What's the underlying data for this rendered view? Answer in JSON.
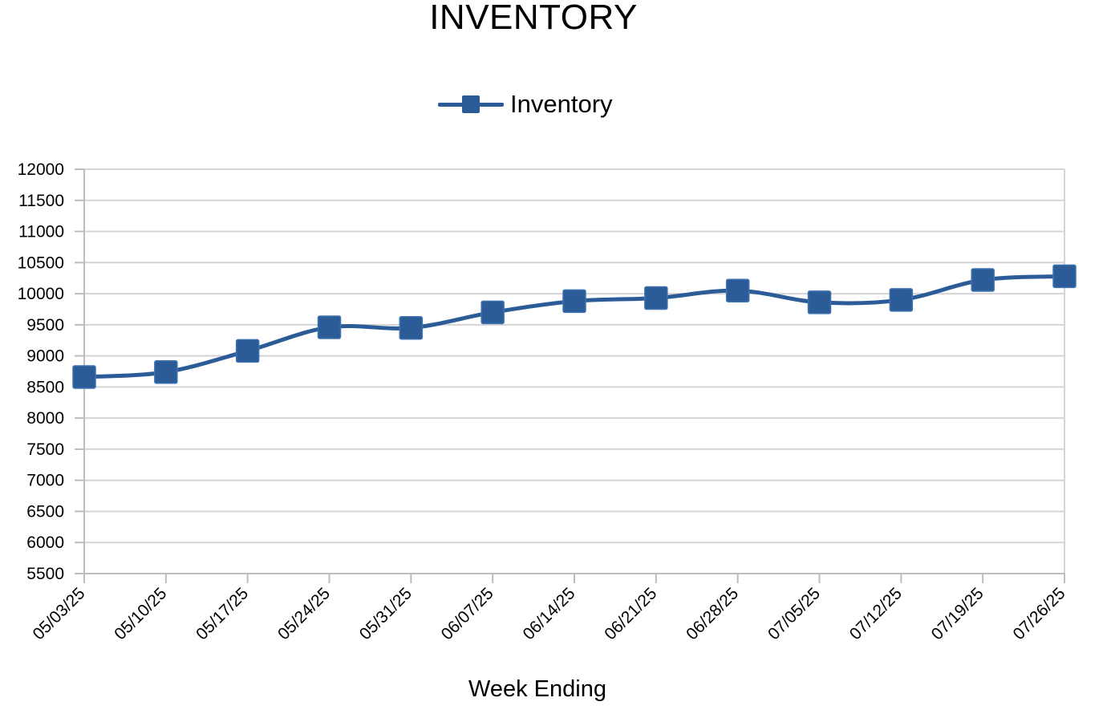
{
  "chart_data": {
    "type": "line",
    "title": "INVENTORY",
    "xlabel": "Week Ending",
    "ylabel": "",
    "categories": [
      "05/03/25",
      "05/10/25",
      "05/17/25",
      "05/24/25",
      "05/31/25",
      "06/07/25",
      "06/14/25",
      "06/21/25",
      "06/28/25",
      "07/05/25",
      "07/12/25",
      "07/19/25",
      "07/26/25"
    ],
    "series": [
      {
        "name": "Inventory",
        "values": [
          8660,
          8740,
          9080,
          9460,
          9450,
          9700,
          9880,
          9930,
          10050,
          9860,
          9900,
          10220,
          10280
        ],
        "color": "#2b5c98",
        "marker": "square",
        "smooth": true
      }
    ],
    "ylim": [
      5500,
      12000
    ],
    "yticks": [
      "5500",
      "6000",
      "6500",
      "7000",
      "7500",
      "8000",
      "8500",
      "9000",
      "9500",
      "10000",
      "10500",
      "11000",
      "11500",
      "12000"
    ],
    "grid": true,
    "legend_position": "top-center"
  }
}
